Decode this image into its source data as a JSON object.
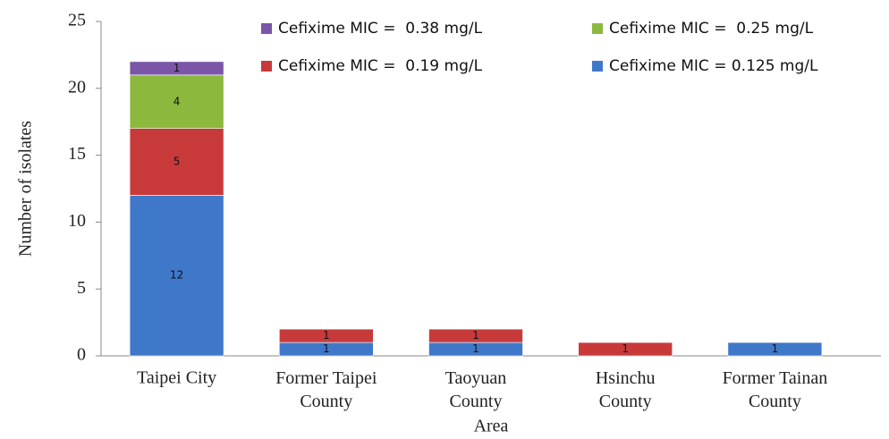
{
  "chart_data": {
    "type": "bar",
    "stacked": true,
    "x_label": "Area",
    "y_label": "Number of isolates",
    "categories": [
      "Taipei City",
      "Former Taipei County",
      "Taoyuan County",
      "Hsinchu County",
      "Former Tainan County"
    ],
    "series": [
      {
        "name": "Cefixime MIC = 0.125 mg/L",
        "color": "#3f78c9",
        "values": [
          12,
          1,
          1,
          null,
          1
        ]
      },
      {
        "name": "Cefixime MIC =  0.19 mg/L",
        "color": "#c83a3a",
        "values": [
          5,
          1,
          1,
          1,
          null
        ]
      },
      {
        "name": "Cefixime MIC =  0.25 mg/L",
        "color": "#8cb83e",
        "values": [
          4,
          null,
          null,
          null,
          null
        ]
      },
      {
        "name": "Cefixime MIC =  0.38 mg/L",
        "color": "#7a55a8",
        "values": [
          1,
          null,
          null,
          null,
          null
        ]
      }
    ],
    "ylim": [
      0,
      25
    ],
    "yticks": [
      0,
      5,
      10,
      15,
      20,
      25
    ],
    "grid": false
  }
}
